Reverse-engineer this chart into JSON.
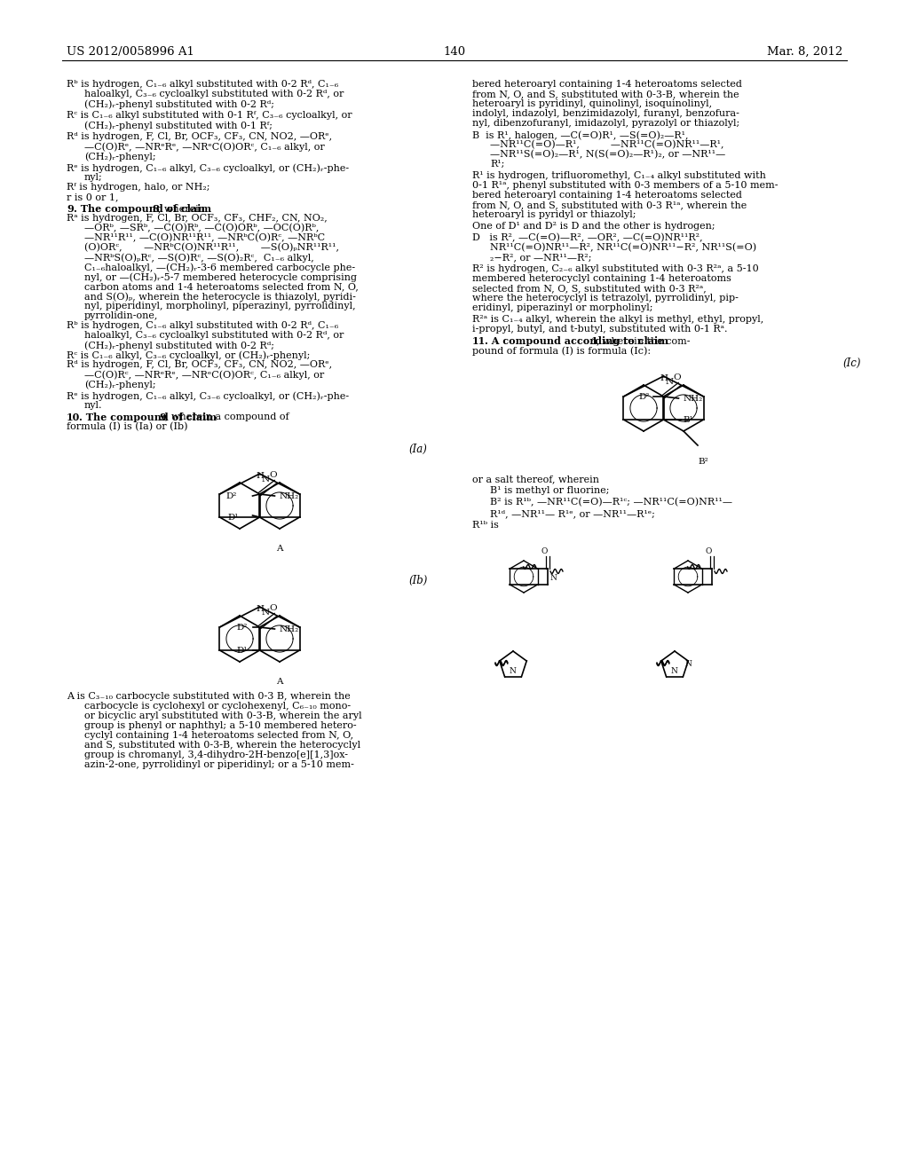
{
  "bg_color": "#ffffff",
  "header_left": "US 2012/0058996 A1",
  "header_right": "Mar. 8, 2012",
  "page_number": "140"
}
